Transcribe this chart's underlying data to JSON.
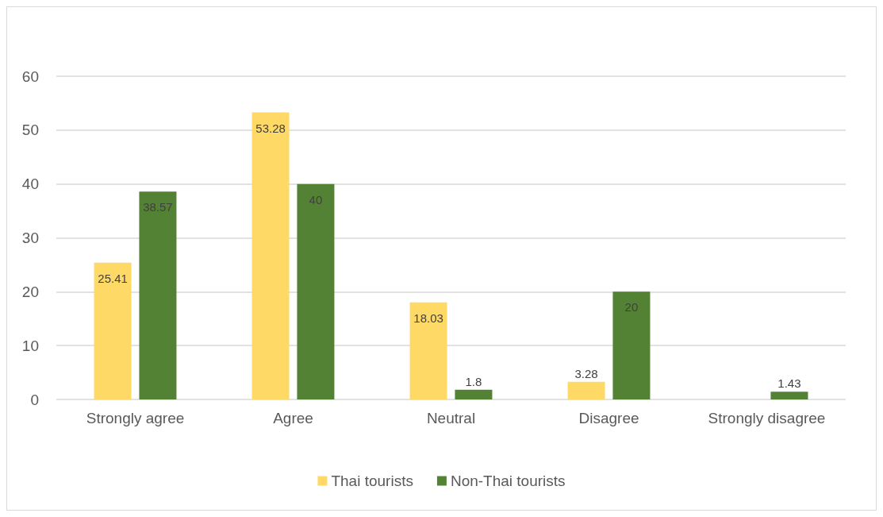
{
  "chart_data": {
    "type": "bar",
    "categories": [
      "Strongly agree",
      "Agree",
      "Neutral",
      "Disagree",
      "Strongly disagree"
    ],
    "series": [
      {
        "name": "Thai tourists",
        "color": "#ffd966",
        "values": [
          25.41,
          53.28,
          18.03,
          3.28,
          null
        ]
      },
      {
        "name": "Non-Thai tourists",
        "color": "#548235",
        "values": [
          38.57,
          40,
          1.8,
          20,
          1.43
        ]
      }
    ],
    "ylim": [
      0,
      60
    ],
    "yticks": [
      0,
      10,
      20,
      30,
      40,
      50,
      60
    ],
    "grid": "y",
    "legend": "bottom",
    "data_labels": true
  }
}
